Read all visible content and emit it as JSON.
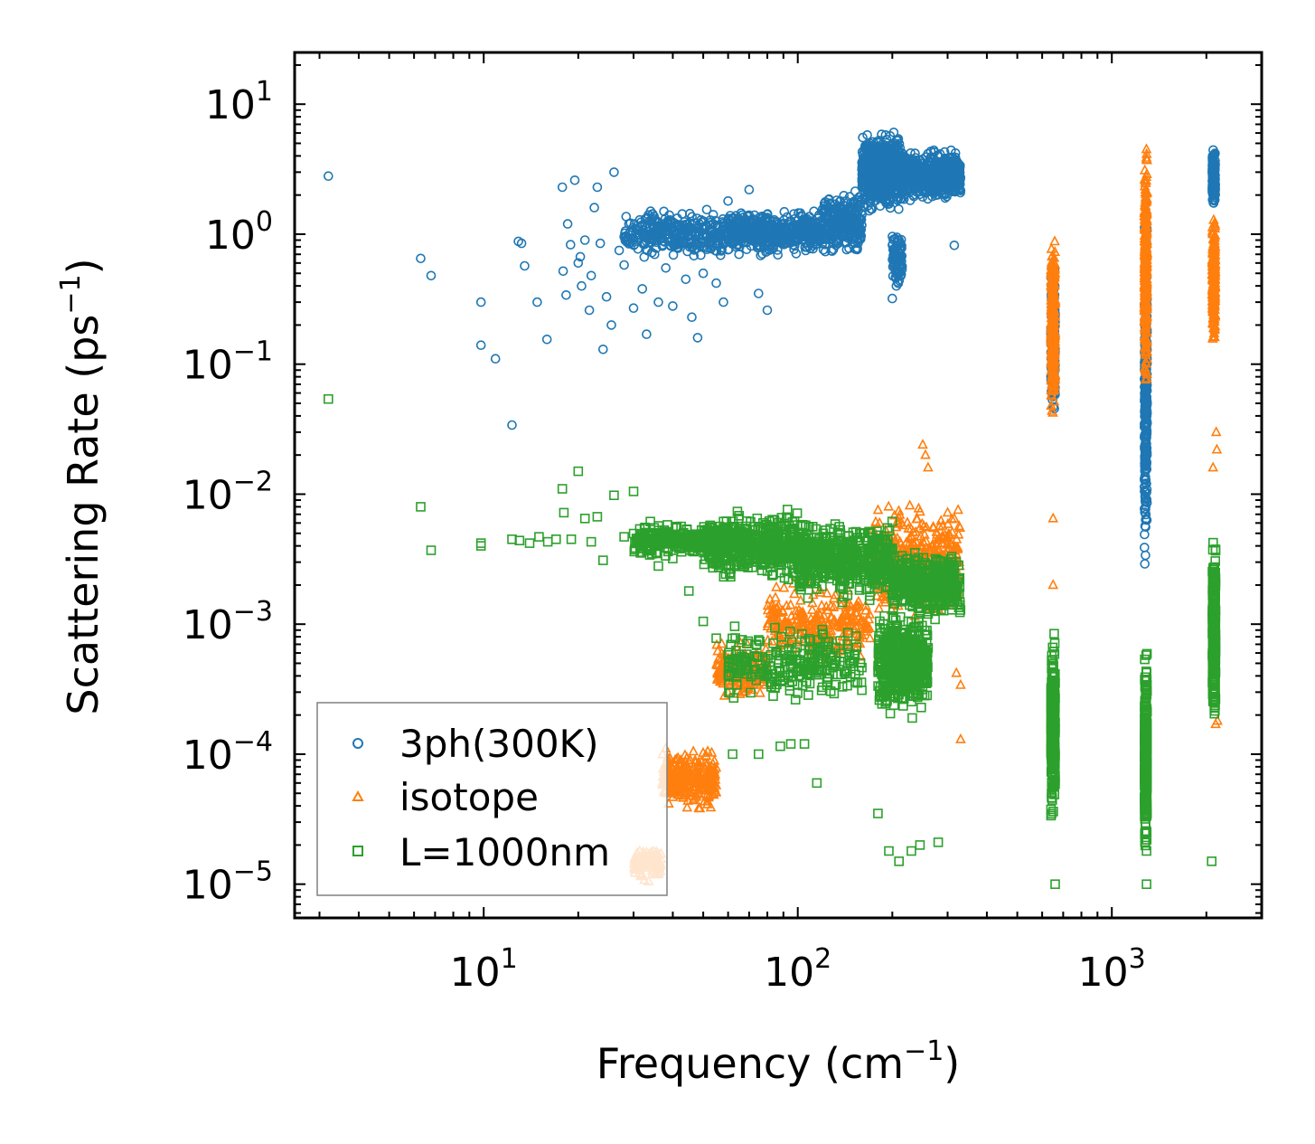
{
  "chart_data": {
    "type": "scatter",
    "xscale": "log",
    "yscale": "log",
    "xlim": [
      2.5,
      3000
    ],
    "ylim": [
      5.5e-06,
      25
    ],
    "xlabel": {
      "text": "Frequency (cm",
      "sup": "−1",
      "tail": ")"
    },
    "ylabel": {
      "text": "Scattering Rate (ps",
      "sup": "−1",
      "tail": ")"
    },
    "x_ticks": [
      {
        "value": 10,
        "base": "10",
        "exp": "1"
      },
      {
        "value": 100,
        "base": "10",
        "exp": "2"
      },
      {
        "value": 1000,
        "base": "10",
        "exp": "3"
      }
    ],
    "y_ticks": [
      {
        "value": 10,
        "base": "10",
        "exp": "1"
      },
      {
        "value": 1,
        "base": "10",
        "exp": "0"
      },
      {
        "value": 0.1,
        "base": "10",
        "exp": "−1"
      },
      {
        "value": 0.01,
        "base": "10",
        "exp": "−2"
      },
      {
        "value": 0.001,
        "base": "10",
        "exp": "−3"
      },
      {
        "value": 0.0001,
        "base": "10",
        "exp": "−4"
      },
      {
        "value": 1e-05,
        "base": "10",
        "exp": "−5"
      }
    ],
    "legend_position": "lower-left",
    "series": [
      {
        "name": "3ph(300K)",
        "marker": "circle",
        "color": "#1f77b4",
        "points": [
          [
            3.2,
            2.8
          ],
          [
            6.3,
            0.65
          ],
          [
            6.8,
            0.48
          ],
          [
            9.8,
            0.3
          ],
          [
            9.8,
            0.14
          ],
          [
            10.9,
            0.11
          ],
          [
            12.3,
            0.034
          ],
          [
            12.9,
            0.88
          ],
          [
            13.2,
            0.85
          ],
          [
            13.5,
            0.57
          ],
          [
            14.8,
            0.3
          ],
          [
            15.9,
            0.155
          ],
          [
            17.8,
            2.3
          ],
          [
            17.9,
            0.52
          ],
          [
            18.3,
            0.34
          ],
          [
            18.5,
            1.2
          ],
          [
            18.9,
            0.83
          ],
          [
            19.5,
            2.6
          ],
          [
            20,
            0.6
          ],
          [
            20.3,
            0.67
          ],
          [
            20.5,
            0.4
          ],
          [
            21,
            0.9
          ],
          [
            21.7,
            0.26
          ],
          [
            22,
            0.48
          ],
          [
            22.5,
            1.6
          ],
          [
            23,
            2.3
          ],
          [
            23.5,
            0.85
          ],
          [
            24,
            0.13
          ],
          [
            24.6,
            0.33
          ],
          [
            25.5,
            0.2
          ],
          [
            26,
            3.0
          ],
          [
            27,
            0.75
          ],
          [
            28,
            0.58
          ],
          [
            29,
            1.2
          ],
          [
            30,
            0.27
          ],
          [
            31,
            0.95
          ],
          [
            32,
            0.38
          ],
          [
            33,
            0.17
          ],
          [
            34,
            1.5
          ],
          [
            35,
            0.7
          ],
          [
            36,
            0.3
          ],
          [
            37,
            1.1
          ],
          [
            38,
            0.55
          ],
          [
            39,
            1.4
          ],
          [
            40,
            0.28
          ],
          [
            42,
            0.9
          ],
          [
            44,
            0.45
          ],
          [
            46,
            0.23
          ],
          [
            48,
            0.16
          ],
          [
            50,
            0.5
          ],
          [
            52,
            0.85
          ],
          [
            55,
            0.42
          ],
          [
            58,
            0.3
          ],
          [
            60,
            1.8
          ],
          [
            65,
            0.7
          ],
          [
            70,
            2.2
          ],
          [
            75,
            0.35
          ],
          [
            80,
            0.26
          ],
          [
            160,
            1.5
          ],
          [
            200,
            0.32
          ],
          [
            210,
            0.9
          ],
          [
            315,
            0.82
          ]
        ],
        "dense_bands": [
          {
            "x": [
              28,
              60
            ],
            "ylog_center": 0.0,
            "ylog_spread": 0.22,
            "n": 320
          },
          {
            "x": [
              60,
              120
            ],
            "ylog_center": 0.02,
            "ylog_spread": 0.2,
            "n": 520
          },
          {
            "x": [
              120,
              160
            ],
            "ylog_center": 0.08,
            "ylog_spread": 0.3,
            "n": 240
          },
          {
            "x": [
              160,
              215
            ],
            "ylog_center": 0.48,
            "ylog_spread": 0.34,
            "n": 700
          },
          {
            "x": [
              200,
              215
            ],
            "ylog_center": -0.2,
            "ylog_spread": 0.25,
            "n": 90
          },
          {
            "x": [
              215,
              330
            ],
            "ylog_center": 0.45,
            "ylog_spread": 0.22,
            "n": 620
          },
          {
            "x": [
              640,
              660
            ],
            "ylog_center": -0.8,
            "ylog_spread": 0.65,
            "n": 260
          },
          {
            "x": [
              1270,
              1295
            ],
            "ylog_center": -1.2,
            "ylog_spread": 1.5,
            "n": 320
          },
          {
            "x": [
              2090,
              2135
            ],
            "ylog_center": 0.45,
            "ylog_spread": 0.25,
            "n": 240
          }
        ]
      },
      {
        "name": "isotope",
        "marker": "triangle",
        "color": "#ff7f0e",
        "points": [
          [
            250,
            0.024
          ],
          [
            260,
            0.016
          ],
          [
            255,
            0.02
          ],
          [
            270,
            0.0056
          ],
          [
            300,
            0.0072
          ],
          [
            320,
            0.00042
          ],
          [
            330,
            0.00034
          ],
          [
            330,
            0.00013
          ],
          [
            650,
            0.002
          ],
          [
            650,
            0.0065
          ],
          [
            2100,
            0.016
          ],
          [
            2150,
            0.03
          ],
          [
            2160,
            0.022
          ],
          [
            2140,
            0.00017
          ],
          [
            2170,
            0.00018
          ]
        ],
        "dense_bands": [
          {
            "x": [
              30,
              37
            ],
            "ylog_center": -4.85,
            "ylog_spread": 0.16,
            "n": 90
          },
          {
            "x": [
              37,
              55
            ],
            "ylog_center": -4.2,
            "ylog_spread": 0.28,
            "n": 260
          },
          {
            "x": [
              55,
              80
            ],
            "ylog_center": -3.35,
            "ylog_spread": 0.25,
            "n": 220
          },
          {
            "x": [
              80,
              170
            ],
            "ylog_center": -3.0,
            "ylog_spread": 0.35,
            "n": 260
          },
          {
            "x": [
              170,
              330
            ],
            "ylog_center": -2.5,
            "ylog_spread": 0.5,
            "n": 380
          },
          {
            "x": [
              640,
              660
            ],
            "ylog_center": -0.7,
            "ylog_spread": 0.8,
            "n": 300
          },
          {
            "x": [
              1270,
              1295
            ],
            "ylog_center": -0.3,
            "ylog_spread": 1.1,
            "n": 340
          },
          {
            "x": [
              2090,
              2135
            ],
            "ylog_center": -0.35,
            "ylog_spread": 0.55,
            "n": 230
          }
        ]
      },
      {
        "name": "L=1000nm",
        "marker": "square",
        "color": "#2ca02c",
        "points": [
          [
            3.2,
            0.054
          ],
          [
            6.3,
            0.008
          ],
          [
            6.8,
            0.0037
          ],
          [
            9.8,
            0.0042
          ],
          [
            9.8,
            0.004
          ],
          [
            12.3,
            0.0045
          ],
          [
            13,
            0.0044
          ],
          [
            14,
            0.0042
          ],
          [
            15,
            0.0047
          ],
          [
            16,
            0.0043
          ],
          [
            17,
            0.0045
          ],
          [
            17.8,
            0.011
          ],
          [
            18,
            0.0072
          ],
          [
            19,
            0.0045
          ],
          [
            20,
            0.015
          ],
          [
            21,
            0.0065
          ],
          [
            22,
            0.0043
          ],
          [
            23,
            0.0067
          ],
          [
            24,
            0.0031
          ],
          [
            26,
            0.0098
          ],
          [
            28,
            0.0047
          ],
          [
            30,
            0.0105
          ],
          [
            32,
            0.0049
          ],
          [
            34,
            0.0037
          ],
          [
            36,
            0.0028
          ],
          [
            40,
            0.0032
          ],
          [
            45,
            0.0018
          ],
          [
            50,
            0.00105
          ],
          [
            55,
            0.00078
          ],
          [
            60,
            0.00058
          ],
          [
            62,
            0.0001
          ],
          [
            75,
            0.0001
          ],
          [
            88,
            0.000115
          ],
          [
            95,
            0.00012
          ],
          [
            105,
            0.00012
          ],
          [
            115,
            6e-05
          ],
          [
            180,
            3.5e-05
          ],
          [
            195,
            1.8e-05
          ],
          [
            210,
            1.5e-05
          ],
          [
            230,
            1.8e-05
          ],
          [
            245,
            2e-05
          ],
          [
            280,
            2.1e-05
          ],
          [
            2080,
            1.5e-05
          ],
          [
            1290,
            1e-05
          ],
          [
            660,
            1e-05
          ]
        ],
        "dense_bands": [
          {
            "x": [
              30,
              60
            ],
            "ylog_center": -2.35,
            "ylog_spread": 0.15,
            "n": 300
          },
          {
            "x": [
              50,
              110
            ],
            "ylog_center": -2.4,
            "ylog_spread": 0.3,
            "n": 520
          },
          {
            "x": [
              60,
              160
            ],
            "ylog_center": -3.3,
            "ylog_spread": 0.35,
            "n": 260
          },
          {
            "x": [
              100,
              200
            ],
            "ylog_center": -2.5,
            "ylog_spread": 0.35,
            "n": 520
          },
          {
            "x": [
              180,
              260
            ],
            "ylog_center": -3.3,
            "ylog_spread": 0.45,
            "n": 520
          },
          {
            "x": [
              200,
              330
            ],
            "ylog_center": -2.7,
            "ylog_spread": 0.3,
            "n": 420
          },
          {
            "x": [
              640,
              660
            ],
            "ylog_center": -3.8,
            "ylog_spread": 0.75,
            "n": 300
          },
          {
            "x": [
              1270,
              1295
            ],
            "ylog_center": -4.0,
            "ylog_spread": 0.9,
            "n": 340
          },
          {
            "x": [
              2090,
              2140
            ],
            "ylog_center": -3.1,
            "ylog_spread": 0.85,
            "n": 300
          }
        ]
      }
    ]
  }
}
